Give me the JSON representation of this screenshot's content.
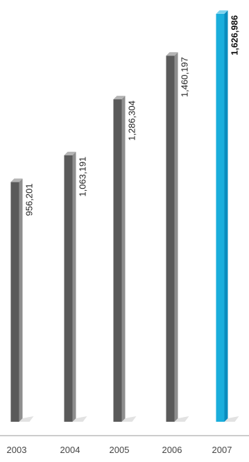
{
  "chart_data": {
    "type": "bar",
    "categories": [
      "2003",
      "2004",
      "2005",
      "2006",
      "2007"
    ],
    "values": [
      956201,
      1063191,
      1286304,
      1460197,
      1626986
    ],
    "value_labels": [
      "956,201",
      "1,063,191",
      "1,286,304",
      "1,460,197",
      "1,626,986"
    ],
    "highlight_index": 4,
    "ylim": [
      0,
      1660000
    ],
    "grid": false,
    "colors": {
      "bar_front": "#5a5a5a",
      "bar_side": "#8e8e8e",
      "bar_top": "#b4b4b4",
      "highlight_front": "#1aaedc",
      "highlight_side": "#0a8cbe",
      "highlight_top": "#7fd3ee",
      "shadow": "#e2e2e2",
      "axis": "#999999"
    }
  }
}
